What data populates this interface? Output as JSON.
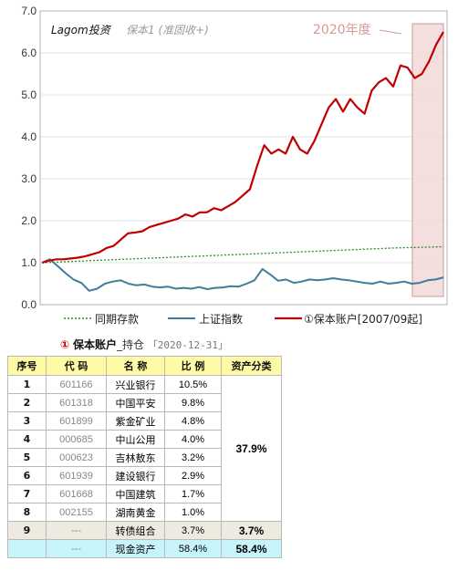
{
  "chart_data": {
    "type": "line",
    "title": "Lagom投资",
    "subtitle": "保本1 (准固收+)",
    "ylim": [
      0,
      7
    ],
    "yticks": [
      "0.0",
      "1.0",
      "2.0",
      "3.0",
      "4.0",
      "5.0",
      "6.0",
      "7.0"
    ],
    "grid": true,
    "legend_position": "bottom",
    "annotation": "2020年度",
    "series": [
      {
        "name": "同期存款",
        "color": "#2e8b2e",
        "style": "dotted",
        "values": [
          1.0,
          1.05,
          1.1,
          1.15,
          1.2,
          1.25,
          1.3,
          1.35,
          1.38
        ]
      },
      {
        "name": "上证指数",
        "color": "#3d7f98",
        "style": "solid",
        "values": [
          1.0,
          1.08,
          0.92,
          0.75,
          0.6,
          0.52,
          0.33,
          0.38,
          0.5,
          0.55,
          0.58,
          0.5,
          0.46,
          0.48,
          0.43,
          0.41,
          0.43,
          0.38,
          0.4,
          0.38,
          0.42,
          0.37,
          0.4,
          0.41,
          0.44,
          0.43,
          0.5,
          0.58,
          0.85,
          0.72,
          0.57,
          0.6,
          0.52,
          0.55,
          0.6,
          0.58,
          0.6,
          0.63,
          0.6,
          0.58,
          0.55,
          0.52,
          0.5,
          0.55,
          0.5,
          0.52,
          0.55,
          0.5,
          0.52,
          0.58,
          0.6,
          0.65
        ]
      },
      {
        "name": "①保本账户[2007/09起]",
        "color": "#c00000",
        "style": "solid",
        "values": [
          1.0,
          1.05,
          1.08,
          1.08,
          1.1,
          1.12,
          1.15,
          1.2,
          1.25,
          1.35,
          1.4,
          1.55,
          1.7,
          1.72,
          1.75,
          1.85,
          1.9,
          1.95,
          2.0,
          2.05,
          2.15,
          2.1,
          2.2,
          2.2,
          2.3,
          2.25,
          2.35,
          2.45,
          2.6,
          2.75,
          3.3,
          3.8,
          3.6,
          3.7,
          3.6,
          4.0,
          3.7,
          3.6,
          3.9,
          4.3,
          4.7,
          4.9,
          4.6,
          4.9,
          4.7,
          4.55,
          5.1,
          5.3,
          5.4,
          5.2,
          5.7,
          5.65,
          5.4,
          5.5,
          5.8,
          6.2,
          6.5
        ]
      }
    ]
  },
  "holdings": {
    "circle": "①",
    "account": "保本账户",
    "suffix": "_持仓",
    "date": "「2020-12-31」",
    "headers": [
      "序号",
      "代 码",
      "名 称",
      "比 例",
      "资产分类"
    ],
    "rows": [
      {
        "no": "1",
        "code": "601166",
        "name": "兴业银行",
        "pct": "10.5%"
      },
      {
        "no": "2",
        "code": "601318",
        "name": "中国平安",
        "pct": "9.8%"
      },
      {
        "no": "3",
        "code": "601899",
        "name": "紫金矿业",
        "pct": "4.8%"
      },
      {
        "no": "4",
        "code": "000685",
        "name": "中山公用",
        "pct": "4.0%"
      },
      {
        "no": "5",
        "code": "000623",
        "name": "吉林敖东",
        "pct": "3.2%"
      },
      {
        "no": "6",
        "code": "601939",
        "name": "建设银行",
        "pct": "2.9%"
      },
      {
        "no": "7",
        "code": "601668",
        "name": "中国建筑",
        "pct": "1.7%"
      },
      {
        "no": "8",
        "code": "002155",
        "name": "湖南黄金",
        "pct": "1.0%"
      }
    ],
    "equity_total": "37.9%",
    "bond_row": {
      "no": "9",
      "code": "---",
      "name": "转债组合",
      "pct": "3.7%",
      "total": "3.7%"
    },
    "cash_row": {
      "no": "",
      "code": "---",
      "name": "现金资产",
      "pct": "58.4%",
      "total": "58.4%"
    }
  }
}
